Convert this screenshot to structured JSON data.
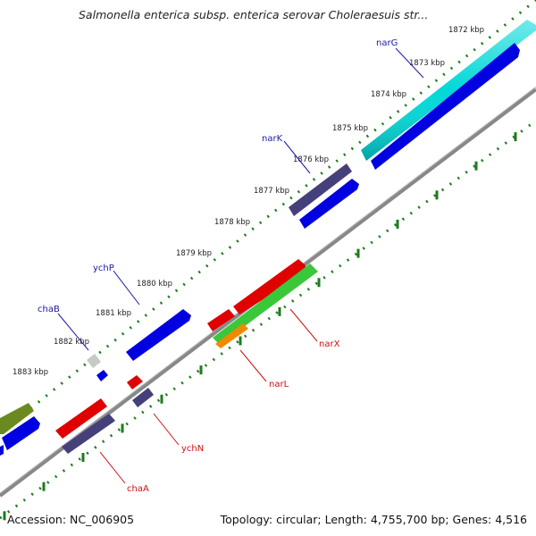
{
  "title": "Salmonella enterica subsp. enterica serovar Choleraesuis str...",
  "footer": {
    "accession": "Accession: NC_006905",
    "summary": "Topology: circular; Length: 4,755,700 bp; Genes: 4,516"
  },
  "kbp_ticks": [
    "1872 kbp",
    "1873 kbp",
    "1874 kbp",
    "1875 kbp",
    "1876 kbp",
    "1877 kbp",
    "1878 kbp",
    "1879 kbp",
    "1880 kbp",
    "1881 kbp",
    "1882 kbp",
    "1883 kbp"
  ],
  "genes_forward": [
    {
      "name": "narG",
      "color": "#1a1aa8"
    },
    {
      "name": "narK",
      "color": "#1a1aa8"
    },
    {
      "name": "ychP",
      "color": "#1a1aa8"
    },
    {
      "name": "chaB",
      "color": "#1a1aa8"
    }
  ],
  "genes_reverse": [
    {
      "name": "narX",
      "color": "#cc1111"
    },
    {
      "name": "narL",
      "color": "#cc1111"
    },
    {
      "name": "ychN",
      "color": "#cc1111"
    },
    {
      "name": "chaA",
      "color": "#cc1111"
    }
  ],
  "colors": {
    "cyan": "#00d8d8",
    "blue": "#0000e0",
    "slate": "#45407a",
    "red": "#e00000",
    "green": "#3ac83a",
    "orange": "#f08a00",
    "olive": "#6a8a20",
    "grey": "#c8c8c8",
    "backbone": "#888888",
    "tick": "#1e7a1e"
  }
}
